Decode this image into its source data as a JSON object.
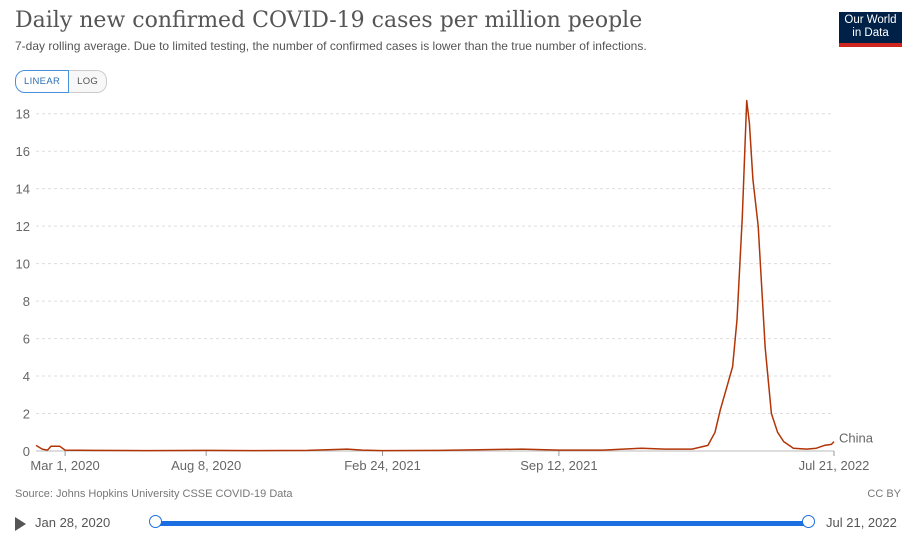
{
  "header": {
    "title": "Daily new confirmed COVID-19 cases per million people",
    "subtitle": "7-day rolling average. Due to limited testing, the number of confirmed cases is lower than the true number of infections.",
    "logo_line1": "Our World",
    "logo_line2": "in Data"
  },
  "scale_toggle": {
    "linear_label": "LINEAR",
    "log_label": "LOG",
    "selected": "LINEAR"
  },
  "footer": {
    "source": "Source: Johns Hopkins University CSSE COVID-19 Data",
    "license": "CC BY"
  },
  "timeline": {
    "start_label": "Jan 28, 2020",
    "end_label": "Jul 21, 2022"
  },
  "colors": {
    "series": "#b13507",
    "accent": "#1b6fe0",
    "logo_bg": "#002147",
    "logo_bar": "#ce261e"
  },
  "chart_data": {
    "type": "line",
    "title": "Daily new confirmed COVID-19 cases per million people",
    "xlabel": "",
    "ylabel": "",
    "x_range": [
      "2020-01-28",
      "2022-07-21"
    ],
    "ylim": [
      0,
      19
    ],
    "y_ticks": [
      0,
      2,
      4,
      6,
      8,
      10,
      12,
      14,
      16,
      18
    ],
    "x_ticks": [
      {
        "date": "2020-03-01",
        "label": "Mar 1, 2020"
      },
      {
        "date": "2020-08-08",
        "label": "Aug 8, 2020"
      },
      {
        "date": "2021-02-24",
        "label": "Feb 24, 2021"
      },
      {
        "date": "2021-09-12",
        "label": "Sep 12, 2021"
      },
      {
        "date": "2022-07-21",
        "label": "Jul 21, 2022"
      }
    ],
    "grid": "horizontal-dashed",
    "series": [
      {
        "name": "China",
        "points": [
          [
            "2020-01-28",
            0.3
          ],
          [
            "2020-02-04",
            0.1
          ],
          [
            "2020-02-10",
            0.05
          ],
          [
            "2020-02-14",
            0.25
          ],
          [
            "2020-02-24",
            0.25
          ],
          [
            "2020-03-01",
            0.05
          ],
          [
            "2020-04-01",
            0.03
          ],
          [
            "2020-06-01",
            0.02
          ],
          [
            "2020-08-08",
            0.03
          ],
          [
            "2020-10-01",
            0.02
          ],
          [
            "2020-12-01",
            0.03
          ],
          [
            "2021-01-15",
            0.1
          ],
          [
            "2021-02-01",
            0.05
          ],
          [
            "2021-02-24",
            0.02
          ],
          [
            "2021-05-01",
            0.03
          ],
          [
            "2021-08-01",
            0.1
          ],
          [
            "2021-09-12",
            0.05
          ],
          [
            "2021-11-01",
            0.05
          ],
          [
            "2021-12-15",
            0.15
          ],
          [
            "2022-01-10",
            0.1
          ],
          [
            "2022-02-10",
            0.1
          ],
          [
            "2022-02-28",
            0.3
          ],
          [
            "2022-03-08",
            1.0
          ],
          [
            "2022-03-14",
            2.2
          ],
          [
            "2022-03-22",
            3.5
          ],
          [
            "2022-03-28",
            4.5
          ],
          [
            "2022-04-02",
            7.0
          ],
          [
            "2022-04-08",
            12.5
          ],
          [
            "2022-04-13",
            18.7
          ],
          [
            "2022-04-16",
            17.5
          ],
          [
            "2022-04-20",
            14.5
          ],
          [
            "2022-04-26",
            12.0
          ],
          [
            "2022-05-04",
            5.5
          ],
          [
            "2022-05-11",
            2.0
          ],
          [
            "2022-05-18",
            1.0
          ],
          [
            "2022-05-25",
            0.5
          ],
          [
            "2022-06-05",
            0.15
          ],
          [
            "2022-06-20",
            0.1
          ],
          [
            "2022-07-01",
            0.15
          ],
          [
            "2022-07-10",
            0.3
          ],
          [
            "2022-07-18",
            0.35
          ],
          [
            "2022-07-21",
            0.5
          ]
        ]
      }
    ]
  }
}
